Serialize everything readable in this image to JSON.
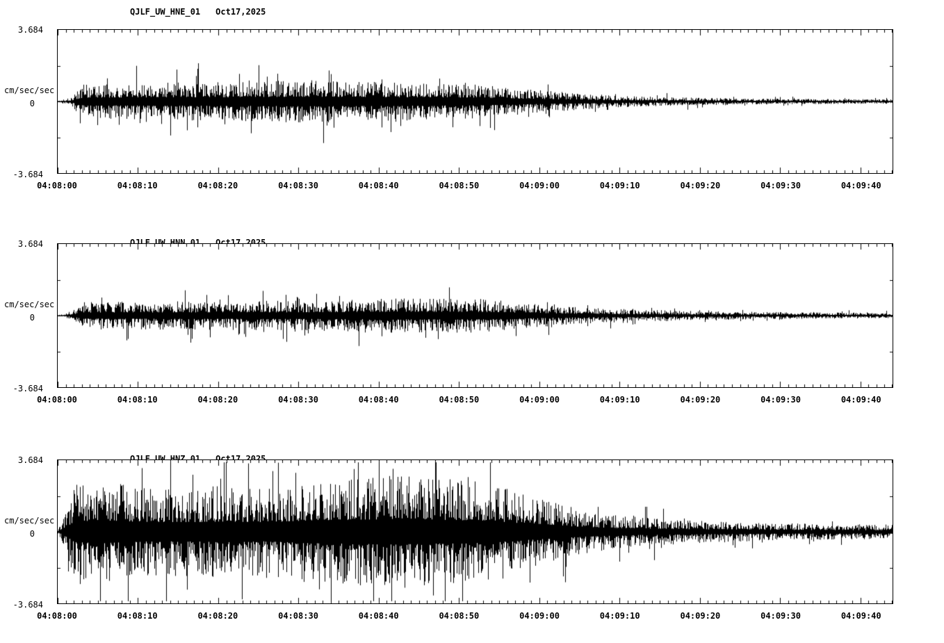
{
  "page": {
    "background": "#ffffff",
    "trace_color": "#000000",
    "axis_color": "#000000"
  },
  "chart_data": [
    {
      "type": "line",
      "chart_kind": "seismogram-waveform",
      "title": "QJLF_UW_HNE_01",
      "date": "Oct17,2025",
      "ylabel": "cm/sec/sec",
      "ylim": [
        -3.684,
        3.684
      ],
      "ytick_labels": [
        "3.684",
        "0",
        "-3.684"
      ],
      "xtick_labels": [
        "04:08:00",
        "04:08:10",
        "04:08:20",
        "04:08:30",
        "04:08:40",
        "04:08:50",
        "04:09:00",
        "04:09:10",
        "04:09:20",
        "04:09:30",
        "04:09:40"
      ],
      "xtick_interval_seconds": 10,
      "minor_tick_seconds": 1,
      "x_span_seconds": 104,
      "grid": false,
      "legend": false,
      "seed": 11,
      "envelope": [
        [
          0,
          0.01
        ],
        [
          0.015,
          0.05
        ],
        [
          0.03,
          0.24
        ],
        [
          0.1,
          0.26
        ],
        [
          0.2,
          0.27
        ],
        [
          0.3,
          0.3
        ],
        [
          0.4,
          0.27
        ],
        [
          0.5,
          0.24
        ],
        [
          0.55,
          0.18
        ],
        [
          0.62,
          0.12
        ],
        [
          0.67,
          0.08
        ],
        [
          0.75,
          0.055
        ],
        [
          0.85,
          0.04
        ],
        [
          1,
          0.03
        ]
      ]
    },
    {
      "type": "line",
      "chart_kind": "seismogram-waveform",
      "title": "QJLF_UW_HNN_01",
      "date": "Oct17,2025",
      "ylabel": "cm/sec/sec",
      "ylim": [
        -3.684,
        3.684
      ],
      "ytick_labels": [
        "3.684",
        "0",
        "-3.684"
      ],
      "xtick_labels": [
        "04:08:00",
        "04:08:10",
        "04:08:20",
        "04:08:30",
        "04:08:40",
        "04:08:50",
        "04:09:00",
        "04:09:10",
        "04:09:20",
        "04:09:30",
        "04:09:40"
      ],
      "xtick_interval_seconds": 10,
      "minor_tick_seconds": 1,
      "x_span_seconds": 104,
      "grid": false,
      "legend": false,
      "seed": 22,
      "envelope": [
        [
          0,
          0.01
        ],
        [
          0.015,
          0.05
        ],
        [
          0.03,
          0.19
        ],
        [
          0.15,
          0.2
        ],
        [
          0.3,
          0.21
        ],
        [
          0.4,
          0.24
        ],
        [
          0.5,
          0.24
        ],
        [
          0.55,
          0.19
        ],
        [
          0.6,
          0.13
        ],
        [
          0.68,
          0.09
        ],
        [
          0.78,
          0.06
        ],
        [
          0.9,
          0.045
        ],
        [
          1,
          0.035
        ]
      ]
    },
    {
      "type": "line",
      "chart_kind": "seismogram-waveform",
      "title": "QJLF_UW_HNZ_01",
      "date": "Oct17,2025",
      "ylabel": "cm/sec/sec",
      "ylim": [
        -3.684,
        3.684
      ],
      "ytick_labels": [
        "3.684",
        "0",
        "-3.684"
      ],
      "xtick_labels": [
        "04:08:00",
        "04:08:10",
        "04:08:20",
        "04:08:30",
        "04:08:40",
        "04:08:50",
        "04:09:00",
        "04:09:10",
        "04:09:20",
        "04:09:30",
        "04:09:40"
      ],
      "xtick_interval_seconds": 10,
      "minor_tick_seconds": 1,
      "x_span_seconds": 104,
      "grid": false,
      "legend": false,
      "seed": 33,
      "envelope": [
        [
          0,
          0.02
        ],
        [
          0.01,
          0.3
        ],
        [
          0.02,
          0.65
        ],
        [
          0.05,
          0.72
        ],
        [
          0.1,
          0.62
        ],
        [
          0.15,
          0.6
        ],
        [
          0.2,
          0.65
        ],
        [
          0.25,
          0.6
        ],
        [
          0.3,
          0.72
        ],
        [
          0.35,
          0.75
        ],
        [
          0.4,
          0.8
        ],
        [
          0.45,
          0.75
        ],
        [
          0.5,
          0.72
        ],
        [
          0.54,
          0.6
        ],
        [
          0.58,
          0.45
        ],
        [
          0.62,
          0.33
        ],
        [
          0.66,
          0.25
        ],
        [
          0.7,
          0.2
        ],
        [
          0.78,
          0.15
        ],
        [
          0.86,
          0.12
        ],
        [
          1,
          0.1
        ]
      ]
    }
  ]
}
